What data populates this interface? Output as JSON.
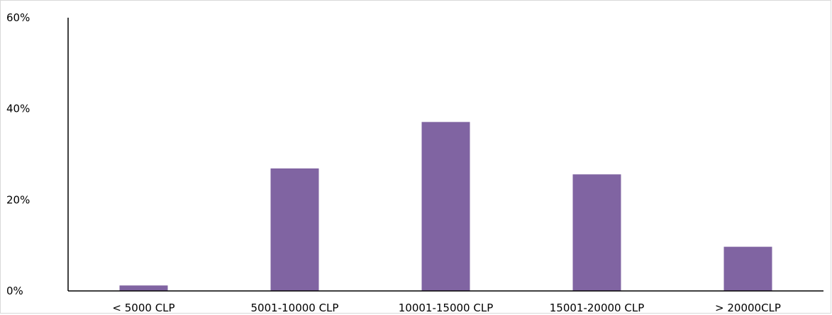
{
  "chart_data": {
    "type": "bar",
    "title": "",
    "xlabel": "",
    "ylabel": "",
    "categories": [
      "< 5000 CLP",
      "5001-10000 CLP",
      "10001-15000 CLP",
      "15001-20000 CLP",
      "> 20000CLP"
    ],
    "values": [
      1.2,
      26.9,
      37.1,
      25.6,
      9.7
    ],
    "ylim": [
      0,
      60
    ],
    "yticks": [
      "0%",
      "20%",
      "40%",
      "60%"
    ],
    "y_tick_values": [
      0,
      20,
      40,
      60
    ],
    "grid": false,
    "legend": "none",
    "bar_color": "#8064a2"
  }
}
